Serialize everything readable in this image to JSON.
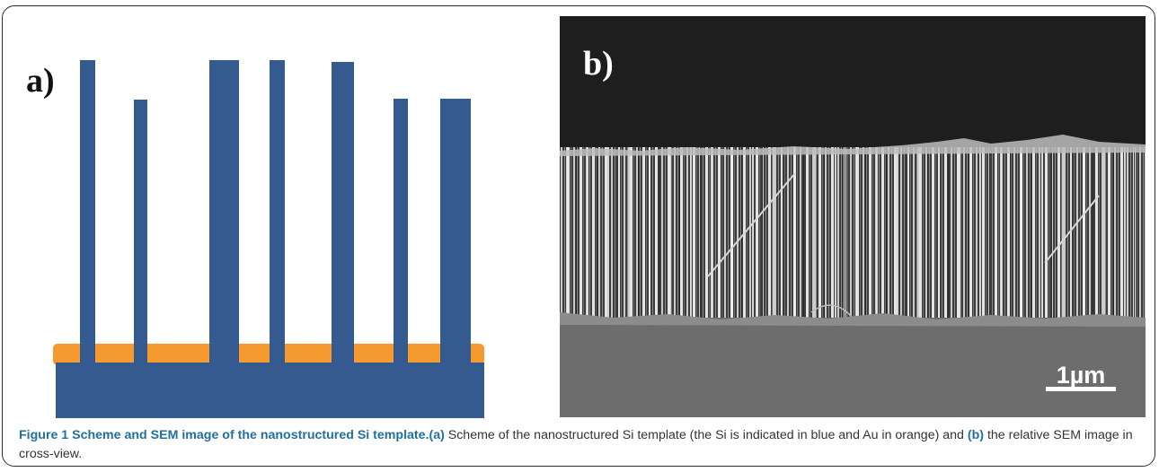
{
  "figure": {
    "panel_a": {
      "label": "a)",
      "colors": {
        "si": "#345a8f",
        "au": "#f59a2e",
        "bg": "#ffffff"
      }
    },
    "panel_b": {
      "label": "b)",
      "scale_bar": "1µm",
      "colors": {
        "sky": "#1e1e1e",
        "text": "#ffffff"
      }
    },
    "caption": {
      "lead": "Figure 1 Scheme and SEM image of the nanostructured Si template.",
      "ref_a": "(a)",
      "text_a": " Scheme of the nanostructured Si template (the Si is indicated in blue and Au in orange) and ",
      "ref_b": "(b)",
      "text_b": " the relative SEM image in cross-view."
    }
  }
}
